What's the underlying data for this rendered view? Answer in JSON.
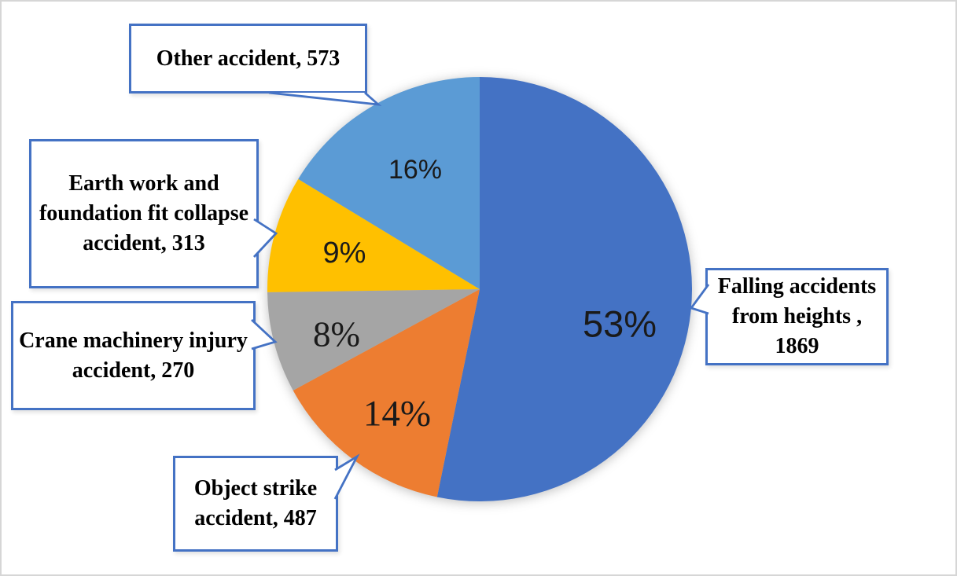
{
  "chart_data": {
    "type": "pie",
    "title": "",
    "legend": "none",
    "start_angle": "12-oclock",
    "direction": "clockwise",
    "callout_border_color": "#4472C4",
    "slices": [
      {
        "id": "falling-accidents-from-heights",
        "label": "Falling accidents from heights",
        "value": 1869,
        "pct_label": "53%",
        "color": "#4472C4",
        "callout_label": "Falling accidents from heights , 1869"
      },
      {
        "id": "object-strike-accident",
        "label": "Object strike accident",
        "value": 487,
        "pct_label": "14%",
        "color": "#ED7D31",
        "callout_label": "Object strike accident, 487"
      },
      {
        "id": "crane-machinery-injury-accident",
        "label": "Crane machinery injury accident",
        "value": 270,
        "pct_label": "8%",
        "color": "#A5A5A5",
        "callout_label": "Crane machinery injury accident, 270"
      },
      {
        "id": "earth-work-foundation-collapse-accident",
        "label": "Earth work and foundation fit collapse accident",
        "value": 313,
        "pct_label": "9%",
        "color": "#FFC000",
        "callout_label": "Earth work and foundation fit collapse accident, 313"
      },
      {
        "id": "other-accident",
        "label": "Other accident",
        "value": 573,
        "pct_label": "16%",
        "color": "#5B9BD5",
        "callout_label": "Other accident, 573"
      }
    ]
  }
}
